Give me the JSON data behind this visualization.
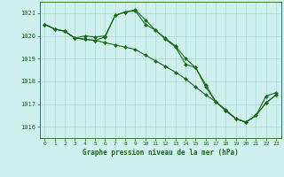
{
  "title": "Graphe pression niveau de la mer (hPa)",
  "background_color": "#cff0ee",
  "grid_color": "#aaddcc",
  "line_color": "#1a6b1a",
  "marker_color": "#1a6b1a",
  "xlim": [
    -0.5,
    23.5
  ],
  "ylim": [
    1015.5,
    1021.5
  ],
  "yticks": [
    1016,
    1017,
    1018,
    1019,
    1020,
    1021
  ],
  "xticks": [
    0,
    1,
    2,
    3,
    4,
    5,
    6,
    7,
    8,
    9,
    10,
    11,
    12,
    13,
    14,
    15,
    16,
    17,
    18,
    19,
    20,
    21,
    22,
    23
  ],
  "series": [
    {
      "x": [
        0,
        1,
        2,
        3,
        4,
        5,
        6,
        7,
        8,
        9,
        10,
        11,
        12,
        13,
        14,
        15,
        16,
        17,
        18,
        19,
        20,
        21,
        22,
        23
      ],
      "y": [
        1020.5,
        1020.3,
        1020.2,
        1019.9,
        1019.85,
        1019.8,
        1019.7,
        1019.6,
        1019.5,
        1019.4,
        1019.15,
        1018.9,
        1018.65,
        1018.4,
        1018.1,
        1017.75,
        1017.4,
        1017.1,
        1016.75,
        1016.35,
        1016.2,
        1016.5,
        1017.35,
        1017.5
      ]
    },
    {
      "x": [
        0,
        1,
        2,
        3,
        4,
        5,
        6,
        7,
        8,
        9,
        10,
        11,
        12,
        13,
        14,
        15,
        16,
        17,
        18,
        19,
        20,
        21,
        22,
        23
      ],
      "y": [
        1020.5,
        1020.3,
        1020.2,
        1019.9,
        1020.0,
        1019.95,
        1020.0,
        1020.9,
        1021.05,
        1021.1,
        1020.5,
        1020.25,
        1019.85,
        1019.5,
        1018.75,
        1018.6,
        1017.75,
        1017.1,
        1016.7,
        1016.35,
        1016.2,
        1016.5,
        1017.05,
        1017.4
      ]
    },
    {
      "x": [
        0,
        1,
        2,
        3,
        4,
        5,
        6,
        7,
        8,
        9,
        10,
        11,
        12,
        13,
        14,
        15,
        16,
        17,
        18,
        19,
        20,
        21,
        22,
        23
      ],
      "y": [
        1020.5,
        1020.3,
        1020.2,
        1019.9,
        1019.85,
        1019.8,
        1019.95,
        1020.9,
        1021.05,
        1021.15,
        1020.7,
        1020.25,
        1019.9,
        1019.55,
        1019.0,
        1018.6,
        1017.85,
        1017.1,
        1016.7,
        1016.35,
        1016.2,
        1016.5,
        1017.05,
        1017.4
      ]
    }
  ]
}
